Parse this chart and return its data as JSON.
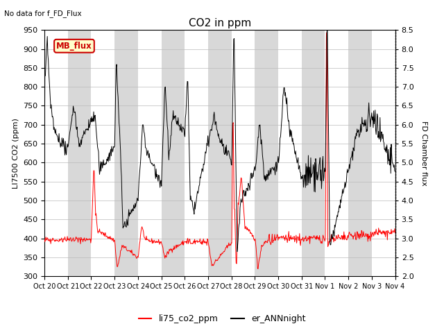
{
  "title": "CO2 in ppm",
  "top_left_text": "No data for f_FD_Flux",
  "ylabel_left": "LI7500 CO2 (ppm)",
  "ylabel_right": "FD Chamber flux",
  "ylim_left": [
    300,
    950
  ],
  "ylim_right": [
    2.0,
    8.5
  ],
  "yticks_left": [
    300,
    350,
    400,
    450,
    500,
    550,
    600,
    650,
    700,
    750,
    800,
    850,
    900,
    950
  ],
  "yticks_right": [
    2.0,
    2.5,
    3.0,
    3.5,
    4.0,
    4.5,
    5.0,
    5.5,
    6.0,
    6.5,
    7.0,
    7.5,
    8.0,
    8.5
  ],
  "xtick_labels": [
    "Oct 20",
    "Oct 21",
    "Oct 22",
    "Oct 23",
    "Oct 24",
    "Oct 25",
    "Oct 26",
    "Oct 27",
    "Oct 28",
    "Oct 29",
    "Oct 30",
    "Oct 31",
    "Nov 1",
    "Nov 2",
    "Nov 3",
    "Nov 4"
  ],
  "color_red": "#ff0000",
  "color_black": "#000000",
  "color_mb_flux_box_bg": "#ffffcc",
  "color_mb_flux_box_border": "#cc0000",
  "color_mb_flux_text": "#cc0000",
  "mb_flux_label": "MB_flux",
  "legend_entries": [
    "li75_co2_ppm",
    "er_ANNnight"
  ],
  "bg_band_color": "#d8d8d8",
  "bg_color": "#ffffff",
  "n_days": 15,
  "pts_per_day": 48
}
